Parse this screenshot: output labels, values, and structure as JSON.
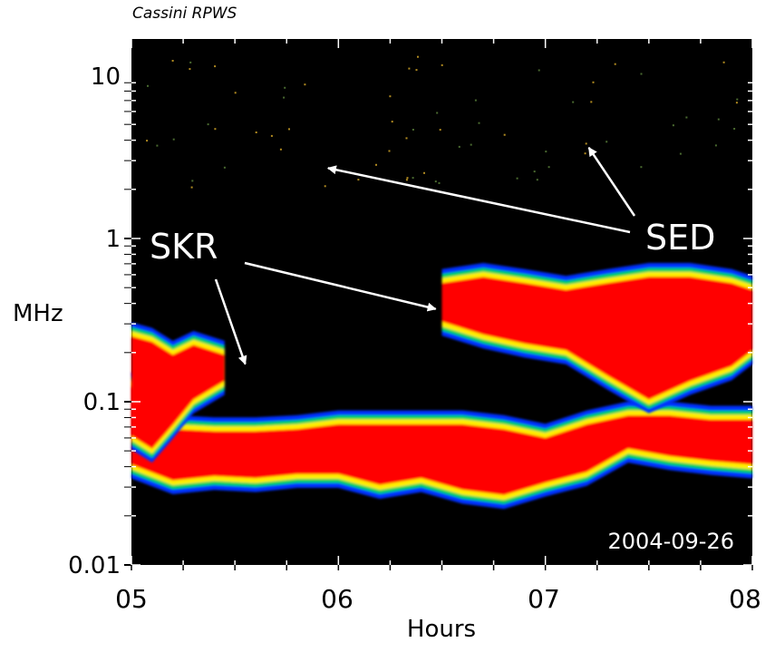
{
  "header": {
    "instrument": "Cassini RPWS"
  },
  "chart_data": {
    "type": "heatmap",
    "title": "Cassini RPWS",
    "xlabel": "Hours",
    "ylabel": "MHz",
    "x_ticks": [
      "05",
      "06",
      "07",
      "08"
    ],
    "x_range": [
      5,
      8
    ],
    "y_ticks": [
      "0.01",
      "0.1",
      "1",
      "10"
    ],
    "y_scale": "log",
    "y_range": [
      0.01,
      16
    ],
    "date_label": "2004-09-26",
    "annotations": [
      {
        "text": "SKR",
        "points_to": [
          [
            5.55,
            0.17
          ],
          [
            6.47,
            0.37
          ]
        ]
      },
      {
        "text": "SED",
        "points_to": [
          [
            5.95,
            2.7
          ],
          [
            7.21,
            3.6
          ]
        ]
      }
    ],
    "colors": {
      "background": "#000000",
      "low": "#0033ff",
      "mid": "#00d060",
      "high_mid": "#ffee00",
      "max": "#ff0000",
      "annotation": "#ffffff"
    },
    "emission_bands": [
      {
        "name": "SKR main band",
        "x": [
          5.0,
          5.2,
          5.4,
          5.6,
          5.8,
          6.0,
          6.2,
          6.4,
          6.6,
          6.8,
          7.0,
          7.2,
          7.4,
          7.6,
          7.8,
          8.0
        ],
        "f_low": [
          0.04,
          0.032,
          0.034,
          0.033,
          0.035,
          0.035,
          0.03,
          0.033,
          0.028,
          0.026,
          0.031,
          0.036,
          0.05,
          0.045,
          0.042,
          0.04
        ],
        "f_high": [
          0.13,
          0.07,
          0.068,
          0.068,
          0.07,
          0.075,
          0.075,
          0.075,
          0.075,
          0.07,
          0.062,
          0.075,
          0.085,
          0.085,
          0.08,
          0.08
        ]
      },
      {
        "name": "SKR early burst",
        "x": [
          5.0,
          5.1,
          5.2,
          5.3,
          5.45
        ],
        "f_low": [
          0.06,
          0.05,
          0.07,
          0.1,
          0.13
        ],
        "f_high": [
          0.26,
          0.24,
          0.2,
          0.23,
          0.2
        ]
      },
      {
        "name": "SKR upper band",
        "x": [
          6.5,
          6.7,
          6.9,
          7.1,
          7.3,
          7.5,
          7.7,
          7.9,
          8.0
        ],
        "f_low": [
          0.3,
          0.25,
          0.22,
          0.2,
          0.14,
          0.1,
          0.13,
          0.16,
          0.2
        ],
        "f_high": [
          0.55,
          0.6,
          0.55,
          0.5,
          0.55,
          0.6,
          0.6,
          0.55,
          0.5
        ]
      }
    ]
  }
}
